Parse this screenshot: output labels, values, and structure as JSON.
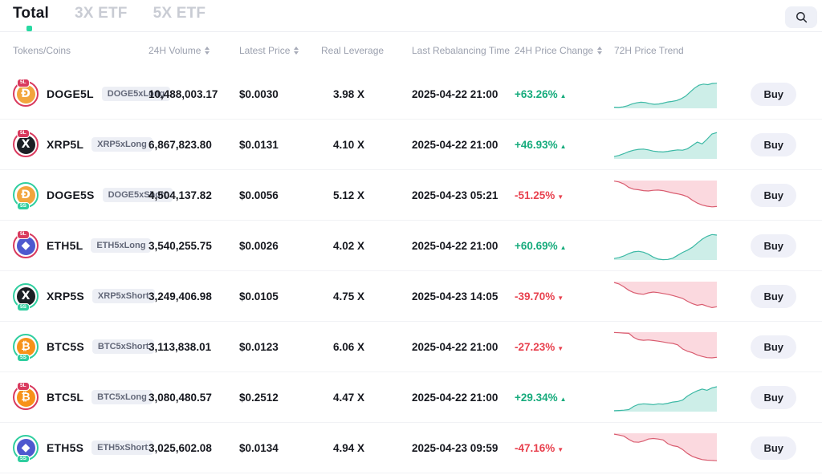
{
  "tab_bar": {
    "tabs": [
      {
        "label": "Total",
        "active": true
      },
      {
        "label": "3X ETF",
        "active": false
      },
      {
        "label": "5X ETF",
        "active": false
      }
    ]
  },
  "search": {
    "icon": "magnifier"
  },
  "colors": {
    "accent": "#28d9a2",
    "positive": "#16ab7c",
    "negative": "#e8414e",
    "long_ring": "#d93a5e",
    "short_ring": "#2fce9f",
    "trend_up_line": "#3cb9a5",
    "trend_up_fill": "#cdeee8",
    "trend_down_line": "#d95d70",
    "trend_down_fill": "#fbd9df"
  },
  "table": {
    "columns": [
      {
        "label": "Tokens/Coins",
        "sortable": false
      },
      {
        "label": "24H Volume",
        "sortable": true
      },
      {
        "label": "Latest Price",
        "sortable": true
      },
      {
        "label": "Real Leverage",
        "sortable": false
      },
      {
        "label": "Last Rebalancing Time",
        "sortable": false
      },
      {
        "label": "24H Price Change",
        "sortable": true
      },
      {
        "label": "72H Price Trend",
        "sortable": false
      }
    ],
    "buy_label": "Buy",
    "rows": [
      {
        "token": "DOGE5L",
        "tag": "DOGE5xLong",
        "coin": {
          "base": "DOGE",
          "glyph": "Ð",
          "bg": "#f2a53d",
          "side": "long",
          "badge": "5L"
        },
        "volume": "10,488,003.17",
        "latest_price": "$0.0030",
        "real_leverage": "3.98 X",
        "last_rebalancing": "2025-04-22 21:00",
        "change": "+63.26%",
        "direction": "up",
        "trend": [
          4,
          3,
          5,
          9,
          15,
          19,
          21,
          20,
          16,
          14,
          15,
          18,
          22,
          24,
          27,
          33,
          42,
          56,
          70,
          80,
          84,
          82,
          86,
          87
        ]
      },
      {
        "token": "XRP5L",
        "tag": "XRP5xLong",
        "coin": {
          "base": "XRP",
          "glyph": "X",
          "bg": "#1b1f24",
          "side": "long",
          "badge": "5L"
        },
        "volume": "6,867,823.80",
        "latest_price": "$0.0131",
        "real_leverage": "4.10 X",
        "last_rebalancing": "2025-04-22 21:00",
        "change": "+46.93%",
        "direction": "up",
        "trend": [
          8,
          12,
          18,
          25,
          30,
          33,
          34,
          31,
          27,
          25,
          24,
          26,
          29,
          31,
          30,
          35,
          46,
          58,
          52,
          68,
          86,
          91
        ]
      },
      {
        "token": "DOGE5S",
        "tag": "DOGE5xShort",
        "coin": {
          "base": "DOGE",
          "glyph": "Ð",
          "bg": "#f2a53d",
          "side": "short",
          "badge": "5S"
        },
        "volume": "4,504,137.82",
        "latest_price": "$0.0056",
        "real_leverage": "5.12 X",
        "last_rebalancing": "2025-04-23 05:21",
        "change": "-51.25%",
        "direction": "down",
        "trend": [
          98,
          95,
          88,
          76,
          70,
          68,
          65,
          64,
          66,
          67,
          65,
          61,
          57,
          54,
          50,
          44,
          32,
          22,
          15,
          11,
          9,
          10
        ]
      },
      {
        "token": "ETH5L",
        "tag": "ETH5xLong",
        "coin": {
          "base": "ETH",
          "glyph": "◆",
          "bg": "#4e59cf",
          "side": "long",
          "badge": "5L"
        },
        "volume": "3,540,255.75",
        "latest_price": "$0.0026",
        "real_leverage": "4.02 X",
        "last_rebalancing": "2025-04-22 21:00",
        "change": "+60.69%",
        "direction": "up",
        "trend": [
          5,
          8,
          14,
          22,
          28,
          30,
          27,
          20,
          10,
          3,
          1,
          2,
          6,
          16,
          26,
          34,
          44,
          58,
          72,
          82,
          88,
          86
        ]
      },
      {
        "token": "XRP5S",
        "tag": "XRP5xShort",
        "coin": {
          "base": "XRP",
          "glyph": "X",
          "bg": "#1b1f24",
          "side": "short",
          "badge": "5S"
        },
        "volume": "3,249,406.98",
        "latest_price": "$0.0105",
        "real_leverage": "4.75 X",
        "last_rebalancing": "2025-04-23 14:05",
        "change": "-39.70%",
        "direction": "down",
        "trend": [
          97,
          92,
          82,
          70,
          62,
          58,
          56,
          61,
          64,
          62,
          59,
          56,
          52,
          47,
          42,
          32,
          24,
          18,
          21,
          15,
          10,
          13
        ]
      },
      {
        "token": "BTC5S",
        "tag": "BTC5xShort",
        "coin": {
          "base": "BTC",
          "glyph": "₿",
          "bg": "#f79219",
          "side": "short",
          "badge": "5S"
        },
        "volume": "3,113,838.01",
        "latest_price": "$0.0123",
        "real_leverage": "6.06 X",
        "last_rebalancing": "2025-04-22 21:00",
        "change": "-27.23%",
        "direction": "down",
        "trend": [
          99,
          98,
          97,
          96,
          82,
          74,
          72,
          73,
          71,
          69,
          66,
          63,
          61,
          56,
          42,
          34,
          29,
          21,
          16,
          12,
          11,
          13
        ]
      },
      {
        "token": "BTC5L",
        "tag": "BTC5xLong",
        "coin": {
          "base": "BTC",
          "glyph": "₿",
          "bg": "#f79219",
          "side": "long",
          "badge": "5L"
        },
        "volume": "3,080,480.57",
        "latest_price": "$0.2512",
        "real_leverage": "4.47 X",
        "last_rebalancing": "2025-04-22 21:00",
        "change": "+29.34%",
        "direction": "up",
        "trend": [
          3,
          4,
          5,
          7,
          18,
          25,
          27,
          26,
          24,
          27,
          26,
          29,
          33,
          35,
          40,
          54,
          64,
          72,
          78,
          74,
          82,
          86
        ]
      },
      {
        "token": "ETH5S",
        "tag": "ETH5xShort",
        "coin": {
          "base": "ETH",
          "glyph": "◆",
          "bg": "#4e59cf",
          "side": "short",
          "badge": "5S"
        },
        "volume": "3,025,602.08",
        "latest_price": "$0.0134",
        "real_leverage": "4.94 X",
        "last_rebalancing": "2025-04-23 09:59",
        "change": "-47.16%",
        "direction": "down",
        "trend": [
          97,
          94,
          90,
          79,
          70,
          69,
          73,
          80,
          82,
          80,
          77,
          64,
          57,
          54,
          44,
          30,
          20,
          14,
          9,
          7,
          6,
          5
        ]
      }
    ]
  }
}
